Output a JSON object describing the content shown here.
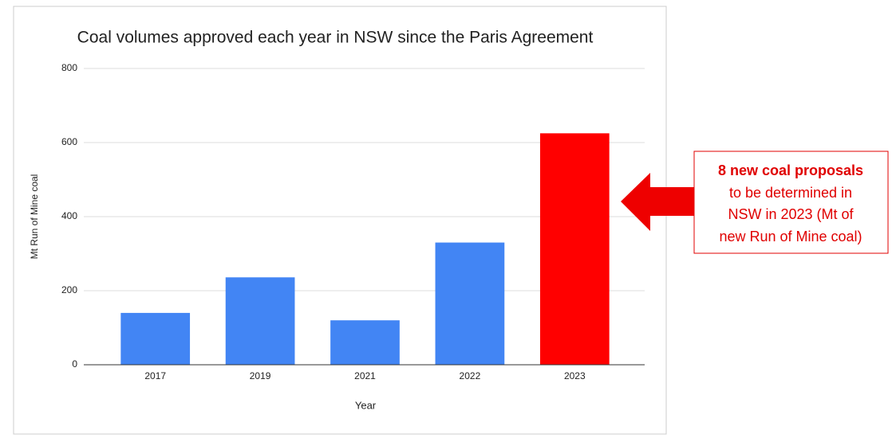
{
  "chart_data": {
    "type": "bar",
    "title": "Coal volumes approved each year in NSW since the Paris Agreement",
    "x_label": "Year",
    "y_label": "Mt Run of Mine coal",
    "categories": [
      "2017",
      "2019",
      "2021",
      "2022",
      "2023"
    ],
    "values": [
      140,
      236,
      120,
      330,
      625
    ],
    "colors": [
      "#4285f4",
      "#4285f4",
      "#4285f4",
      "#4285f4",
      "#ff0000"
    ],
    "ylim": [
      0,
      800
    ],
    "yticks": [
      0,
      200,
      400,
      600,
      800
    ],
    "grid": true,
    "annotation": {
      "title": "8 new coal proposals",
      "lines": [
        "to be determined in",
        "NSW in 2023 (Mt of",
        "new Run of Mine coal)"
      ]
    }
  }
}
